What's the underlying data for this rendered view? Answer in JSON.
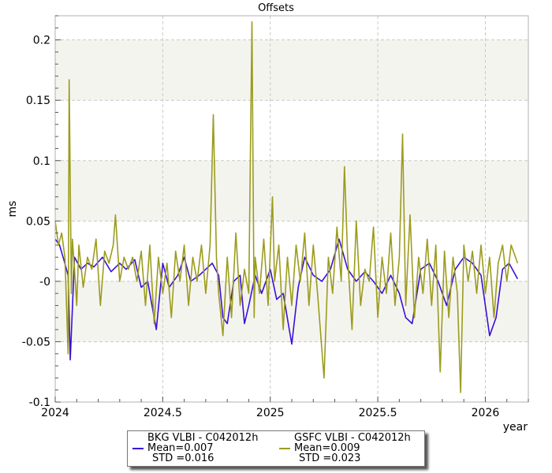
{
  "colors": {
    "bkg": "#3a10d8",
    "gsfc": "#9c9c1e",
    "band": "#f4f4ef",
    "grid": "#c8c8c8"
  },
  "chart_data": {
    "type": "line",
    "title": "Offsets",
    "xlabel": "year",
    "ylabel": "ms",
    "xlim": [
      2024.0,
      2026.2
    ],
    "ylim": [
      -0.1,
      0.22
    ],
    "xticks": [
      2024,
      2024.5,
      2025,
      2025.5,
      2026
    ],
    "xtick_labels": [
      "2024",
      "2024.5",
      "2025",
      "2025.5",
      "2026"
    ],
    "yticks": [
      -0.1,
      -0.05,
      0,
      0.05,
      0.1,
      0.15,
      0.2
    ],
    "ytick_labels": [
      "-0.1",
      "-0.05",
      "-0",
      "0.05",
      "0.1",
      "0.15",
      "0.2"
    ],
    "grid": true,
    "legend_placement": "bottom-center",
    "series": [
      {
        "name": "BKG VLBI - C042012h",
        "mean_label": "Mean=0.007",
        "std_label": "STD =0.016",
        "color_key": "bkg",
        "x": [
          2024.0,
          2024.02,
          2024.04,
          2024.06,
          2024.07,
          2024.09,
          2024.12,
          2024.15,
          2024.18,
          2024.22,
          2024.26,
          2024.3,
          2024.33,
          2024.37,
          2024.4,
          2024.43,
          2024.47,
          2024.5,
          2024.53,
          2024.57,
          2024.6,
          2024.63,
          2024.67,
          2024.7,
          2024.73,
          2024.76,
          2024.78,
          2024.8,
          2024.83,
          2024.86,
          2024.88,
          2024.9,
          2024.93,
          2024.96,
          2025.0,
          2025.03,
          2025.06,
          2025.1,
          2025.13,
          2025.16,
          2025.2,
          2025.24,
          2025.28,
          2025.32,
          2025.36,
          2025.4,
          2025.44,
          2025.48,
          2025.52,
          2025.56,
          2025.6,
          2025.63,
          2025.66,
          2025.7,
          2025.74,
          2025.78,
          2025.82,
          2025.86,
          2025.9,
          2025.94,
          2025.98,
          2026.02,
          2026.05,
          2026.08,
          2026.11,
          2026.15
        ],
        "y": [
          0.035,
          0.03,
          0.018,
          0.005,
          -0.065,
          0.02,
          0.01,
          0.015,
          0.012,
          0.02,
          0.008,
          0.015,
          0.01,
          0.018,
          -0.005,
          0.0,
          -0.04,
          0.015,
          -0.005,
          0.005,
          0.02,
          0.0,
          0.005,
          0.01,
          0.015,
          0.005,
          -0.03,
          -0.035,
          0.0,
          0.005,
          -0.035,
          -0.02,
          0.005,
          -0.01,
          0.01,
          -0.015,
          -0.01,
          -0.052,
          -0.005,
          0.02,
          0.005,
          0.0,
          0.01,
          0.035,
          0.01,
          0.0,
          0.008,
          0.0,
          -0.01,
          0.005,
          -0.01,
          -0.03,
          -0.035,
          0.01,
          0.015,
          0.0,
          -0.02,
          0.01,
          0.02,
          0.015,
          0.005,
          -0.045,
          -0.03,
          0.01,
          0.015,
          0.002
        ]
      },
      {
        "name": "GSFC VLBI - C042012h",
        "mean_label": "Mean=0.009",
        "std_label": "STD =0.023",
        "color_key": "gsfc",
        "x": [
          2024.0,
          2024.015,
          2024.03,
          2024.045,
          2024.06,
          2024.065,
          2024.07,
          2024.075,
          2024.08,
          2024.09,
          2024.1,
          2024.11,
          2024.13,
          2024.15,
          2024.17,
          2024.19,
          2024.21,
          2024.23,
          2024.25,
          2024.27,
          2024.28,
          2024.3,
          2024.32,
          2024.34,
          2024.36,
          2024.38,
          2024.4,
          2024.42,
          2024.44,
          2024.46,
          2024.48,
          2024.5,
          2024.52,
          2024.54,
          2024.56,
          2024.58,
          2024.6,
          2024.62,
          2024.64,
          2024.66,
          2024.68,
          2024.7,
          2024.72,
          2024.735,
          2024.75,
          2024.76,
          2024.78,
          2024.8,
          2024.82,
          2024.84,
          2024.86,
          2024.88,
          2024.9,
          2024.915,
          2024.925,
          2024.93,
          2024.95,
          2024.97,
          2024.99,
          2025.01,
          2025.02,
          2025.04,
          2025.06,
          2025.08,
          2025.1,
          2025.12,
          2025.14,
          2025.16,
          2025.18,
          2025.2,
          2025.22,
          2025.25,
          2025.27,
          2025.29,
          2025.31,
          2025.33,
          2025.345,
          2025.36,
          2025.38,
          2025.4,
          2025.42,
          2025.44,
          2025.46,
          2025.48,
          2025.5,
          2025.52,
          2025.54,
          2025.56,
          2025.58,
          2025.6,
          2025.615,
          2025.63,
          2025.65,
          2025.67,
          2025.69,
          2025.71,
          2025.73,
          2025.75,
          2025.77,
          2025.79,
          2025.81,
          2025.83,
          2025.85,
          2025.87,
          2025.885,
          2025.9,
          2025.92,
          2025.94,
          2025.96,
          2025.98,
          2026.0,
          2026.02,
          2026.04,
          2026.06,
          2026.08,
          2026.1,
          2026.12,
          2026.15
        ],
        "y": [
          0.05,
          0.03,
          0.04,
          0.02,
          -0.06,
          0.167,
          0.08,
          -0.01,
          0.035,
          0.01,
          -0.02,
          0.03,
          -0.005,
          0.02,
          0.01,
          0.035,
          -0.02,
          0.025,
          0.015,
          0.03,
          0.055,
          0.0,
          0.02,
          0.01,
          0.02,
          0.0,
          0.025,
          -0.02,
          0.03,
          -0.035,
          0.02,
          -0.01,
          0.015,
          -0.03,
          0.025,
          0.0,
          0.03,
          -0.02,
          0.02,
          0.0,
          0.03,
          -0.01,
          0.03,
          0.138,
          0.02,
          -0.01,
          -0.045,
          0.02,
          -0.03,
          0.04,
          -0.02,
          0.01,
          -0.01,
          0.215,
          -0.03,
          0.02,
          -0.01,
          0.035,
          -0.02,
          0.07,
          0.0,
          0.03,
          -0.04,
          0.02,
          -0.02,
          0.03,
          0.0,
          0.04,
          -0.02,
          0.03,
          -0.01,
          -0.08,
          0.02,
          -0.01,
          0.045,
          0.0,
          0.095,
          0.02,
          -0.04,
          0.05,
          -0.02,
          0.01,
          0.0,
          0.045,
          -0.03,
          0.02,
          -0.01,
          0.04,
          -0.02,
          0.02,
          0.122,
          -0.02,
          0.055,
          -0.03,
          0.02,
          -0.01,
          0.035,
          -0.02,
          0.03,
          -0.075,
          0.025,
          -0.03,
          0.02,
          -0.01,
          -0.092,
          0.03,
          0.0,
          0.025,
          -0.01,
          0.03,
          -0.01,
          0.02,
          -0.03,
          0.015,
          0.03,
          0.0,
          0.03,
          0.015
        ]
      }
    ]
  }
}
